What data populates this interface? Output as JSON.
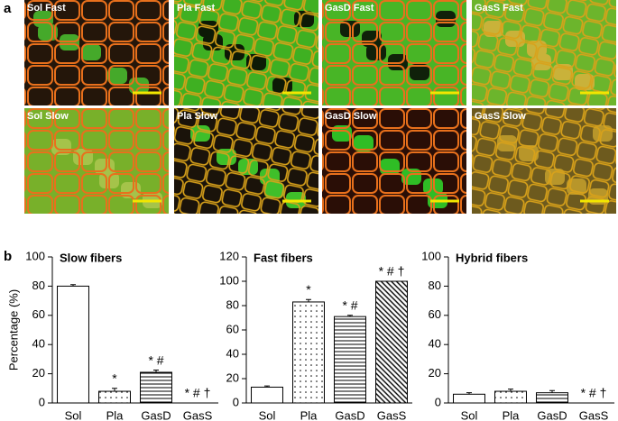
{
  "panel_a": {
    "label": "a",
    "images": [
      "Sol Fast",
      "Pla Fast",
      "GasD Fast",
      "GasS Fast",
      "Sol Slow",
      "Pla Slow",
      "GasD Slow",
      "GasS Slow"
    ]
  },
  "panel_b_label": "b",
  "chart_data": [
    {
      "type": "bar",
      "title": "Slow fibers",
      "y_label": "Percentage (%)",
      "categories": [
        "Sol",
        "Pla",
        "GasD",
        "GasS"
      ],
      "values": [
        80,
        8,
        21,
        0
      ],
      "errors": [
        1,
        2,
        1.5,
        null
      ],
      "annotations": [
        null,
        "*",
        "* #",
        "* # †"
      ],
      "fills": [
        "white",
        "dots",
        "hlines",
        "diagonal"
      ],
      "ylim": [
        0,
        100
      ],
      "yticks": [
        0,
        20,
        40,
        60,
        80,
        100
      ]
    },
    {
      "type": "bar",
      "title": "Fast fibers",
      "categories": [
        "Sol",
        "Pla",
        "GasD",
        "GasS"
      ],
      "values": [
        13,
        83,
        71,
        100
      ],
      "errors": [
        1,
        2,
        1,
        null
      ],
      "annotations": [
        null,
        "*",
        "* #",
        "* # †"
      ],
      "fills": [
        "white",
        "dots",
        "hlines",
        "diagonal"
      ],
      "ylim": [
        0,
        120
      ],
      "yticks": [
        0,
        20,
        40,
        60,
        80,
        100,
        120
      ]
    },
    {
      "type": "bar",
      "title": "Hybrid fibers",
      "categories": [
        "Sol",
        "Pla",
        "GasD",
        "GasS"
      ],
      "values": [
        6,
        8,
        7,
        0
      ],
      "errors": [
        1,
        1.5,
        1.5,
        null
      ],
      "annotations": [
        null,
        null,
        null,
        "* # †"
      ],
      "fills": [
        "white",
        "dots",
        "hlines",
        "diagonal"
      ],
      "ylim": [
        0,
        100
      ],
      "yticks": [
        0,
        20,
        40,
        60,
        80,
        100
      ]
    }
  ]
}
